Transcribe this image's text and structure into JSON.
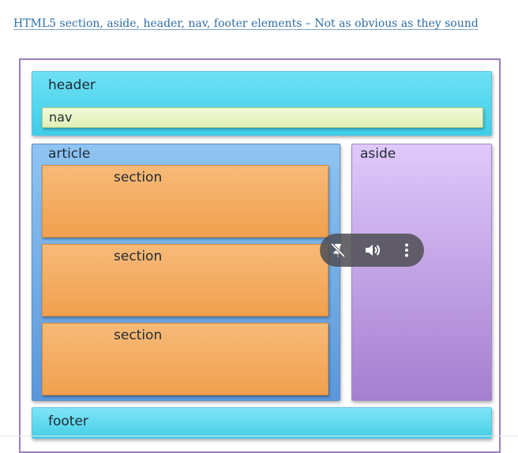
{
  "link": {
    "text": "HTML5 section, aside, header, nav, footer elements – Not as obvious as they sound"
  },
  "diagram": {
    "header": "header",
    "nav": "nav",
    "article": "article",
    "sections": [
      "section",
      "section",
      "section"
    ],
    "aside": "aside",
    "footer": "footer"
  },
  "media_controls": {
    "icons": [
      "pin-off-icon",
      "volume-icon",
      "more-vertical-icon"
    ]
  },
  "colors": {
    "link": "#2e6da4",
    "header": "#3ecde8",
    "nav": "#dff0b6",
    "article": "#5a97da",
    "section": "#f0a04e",
    "aside": "#a57ed0",
    "footer": "#46cfe8",
    "controls_bg": "#4e4e52"
  }
}
